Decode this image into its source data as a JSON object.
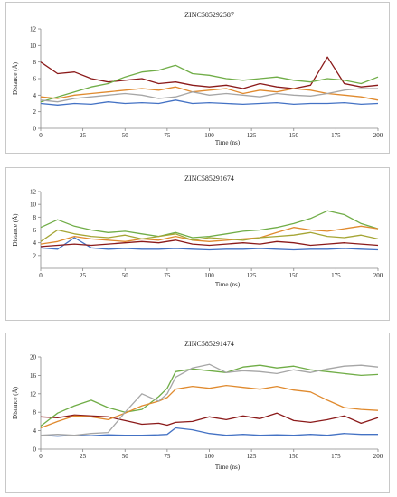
{
  "chart_data": [
    {
      "type": "line",
      "title": "ZINC585292587",
      "xlabel": "Time (ns)",
      "ylabel": "Distance (Å)",
      "xlim": [
        0,
        200
      ],
      "ylim": [
        0,
        12
      ],
      "xticks": [
        0,
        25,
        50,
        75,
        100,
        125,
        150,
        175,
        200
      ],
      "yticks": [
        0,
        2,
        4,
        6,
        8,
        10,
        12
      ],
      "grid": false,
      "x": [
        0,
        10,
        20,
        30,
        40,
        50,
        60,
        70,
        80,
        90,
        100,
        110,
        120,
        130,
        140,
        150,
        160,
        170,
        180,
        190,
        200
      ],
      "series": [
        {
          "color": "#4472C4",
          "values": [
            3.0,
            2.8,
            3.0,
            2.9,
            3.2,
            3.0,
            3.1,
            3.0,
            3.4,
            3.0,
            3.1,
            3.0,
            2.9,
            3.0,
            3.1,
            2.9,
            3.0,
            3.0,
            3.1,
            2.9,
            3.0
          ]
        },
        {
          "color": "#8B1A1A",
          "values": [
            8.0,
            6.6,
            6.8,
            6.0,
            5.6,
            5.8,
            6.0,
            5.4,
            5.6,
            5.2,
            5.0,
            5.2,
            4.8,
            5.4,
            5.0,
            4.8,
            5.2,
            8.6,
            5.4,
            5.0,
            5.2
          ]
        },
        {
          "color": "#70AD47",
          "values": [
            3.2,
            3.8,
            4.4,
            5.0,
            5.4,
            6.2,
            6.8,
            7.0,
            7.6,
            6.6,
            6.4,
            6.0,
            5.8,
            6.0,
            6.2,
            5.8,
            5.6,
            6.0,
            5.8,
            5.4,
            6.2
          ]
        },
        {
          "color": "#E08A2E",
          "values": [
            3.8,
            3.6,
            4.0,
            4.2,
            4.4,
            4.6,
            4.8,
            4.6,
            5.0,
            4.4,
            4.6,
            4.8,
            4.2,
            4.6,
            4.4,
            4.8,
            4.6,
            4.2,
            4.0,
            3.8,
            3.4
          ]
        },
        {
          "color": "#A6A6A6",
          "values": [
            3.4,
            3.2,
            3.6,
            3.8,
            4.0,
            4.2,
            4.0,
            3.6,
            3.8,
            4.4,
            4.0,
            4.2,
            4.0,
            3.8,
            4.2,
            4.0,
            3.9,
            4.2,
            4.6,
            4.8,
            4.8
          ]
        }
      ]
    },
    {
      "type": "line",
      "title": "ZINC585291674",
      "xlabel": "Time (ns)",
      "ylabel": "Distance (Å)",
      "xlim": [
        0,
        200
      ],
      "ylim": [
        0,
        12
      ],
      "xticks": [
        0,
        25,
        50,
        75,
        100,
        125,
        150,
        175,
        200
      ],
      "yticks": [
        2,
        4,
        6,
        8,
        10,
        12
      ],
      "grid": false,
      "x": [
        0,
        10,
        20,
        30,
        40,
        50,
        60,
        70,
        80,
        90,
        100,
        110,
        120,
        130,
        140,
        150,
        160,
        170,
        180,
        190,
        200
      ],
      "series": [
        {
          "color": "#4472C4",
          "values": [
            3.2,
            3.0,
            4.8,
            3.2,
            3.0,
            3.1,
            3.0,
            3.0,
            3.1,
            3.0,
            2.9,
            3.0,
            3.0,
            3.1,
            3.0,
            2.9,
            3.0,
            3.0,
            3.1,
            3.0,
            2.9
          ]
        },
        {
          "color": "#8B1A1A",
          "values": [
            3.4,
            3.6,
            3.8,
            3.6,
            3.8,
            4.0,
            4.2,
            4.0,
            4.4,
            3.8,
            3.6,
            3.8,
            4.0,
            3.8,
            4.2,
            4.0,
            3.6,
            3.8,
            4.0,
            3.8,
            3.6
          ]
        },
        {
          "color": "#70AD47",
          "values": [
            6.4,
            7.6,
            6.6,
            6.0,
            5.6,
            5.8,
            5.4,
            5.0,
            5.6,
            4.8,
            5.0,
            5.4,
            5.8,
            6.0,
            6.4,
            7.0,
            7.8,
            9.0,
            8.4,
            7.0,
            6.2
          ]
        },
        {
          "color": "#E08A2E",
          "values": [
            3.8,
            4.2,
            5.0,
            4.6,
            4.4,
            4.2,
            4.6,
            4.4,
            5.0,
            4.4,
            4.2,
            4.4,
            4.6,
            4.8,
            5.6,
            6.4,
            6.0,
            5.8,
            6.2,
            6.6,
            6.2
          ]
        },
        {
          "color": "#A5A534",
          "values": [
            4.2,
            6.0,
            5.4,
            5.0,
            4.8,
            5.2,
            4.6,
            5.0,
            5.4,
            4.4,
            4.8,
            4.6,
            4.4,
            4.8,
            5.0,
            5.2,
            5.6,
            5.0,
            4.8,
            5.2,
            4.6
          ]
        }
      ]
    },
    {
      "type": "line",
      "title": "ZINC585291474",
      "xlabel": "Time (ns)",
      "ylabel": "Distance (Å)",
      "xlim": [
        0,
        200
      ],
      "ylim": [
        0,
        20
      ],
      "xticks": [
        0,
        25,
        50,
        75,
        100,
        125,
        150,
        175,
        200
      ],
      "yticks": [
        0,
        4,
        8,
        12,
        16,
        20
      ],
      "grid": false,
      "x": [
        0,
        10,
        20,
        30,
        40,
        50,
        60,
        70,
        75,
        80,
        90,
        100,
        110,
        120,
        130,
        140,
        150,
        160,
        170,
        180,
        190,
        200
      ],
      "series": [
        {
          "color": "#4472C4",
          "values": [
            3.0,
            2.8,
            3.0,
            2.9,
            3.1,
            3.0,
            3.0,
            3.1,
            3.2,
            4.6,
            4.2,
            3.4,
            3.0,
            3.2,
            3.0,
            3.1,
            3.0,
            3.2,
            3.0,
            3.4,
            3.2,
            3.2
          ]
        },
        {
          "color": "#8B1A1A",
          "values": [
            7.0,
            6.8,
            7.4,
            7.2,
            7.0,
            6.2,
            5.4,
            5.6,
            5.2,
            5.8,
            6.0,
            7.0,
            6.4,
            7.2,
            6.6,
            7.8,
            6.2,
            5.8,
            6.4,
            7.2,
            5.6,
            6.8
          ]
        },
        {
          "color": "#70AD47",
          "values": [
            5.0,
            7.8,
            9.4,
            10.6,
            9.0,
            8.0,
            8.6,
            11.4,
            13.2,
            16.8,
            17.4,
            17.0,
            16.6,
            17.8,
            18.2,
            17.6,
            18.0,
            17.2,
            16.8,
            16.4,
            16.0,
            16.2
          ]
        },
        {
          "color": "#E08A2E",
          "values": [
            4.6,
            6.0,
            7.2,
            7.0,
            6.4,
            7.8,
            9.4,
            10.4,
            11.2,
            13.0,
            13.6,
            13.2,
            13.8,
            13.4,
            13.0,
            13.6,
            12.8,
            12.4,
            10.6,
            9.0,
            8.6,
            8.4
          ]
        },
        {
          "color": "#A6A6A6",
          "values": [
            3.0,
            3.2,
            3.0,
            3.4,
            3.6,
            8.0,
            12.0,
            10.4,
            12.0,
            15.6,
            17.6,
            18.4,
            16.6,
            17.0,
            16.8,
            16.4,
            17.2,
            16.6,
            17.4,
            18.0,
            18.2,
            17.8
          ]
        }
      ]
    }
  ]
}
